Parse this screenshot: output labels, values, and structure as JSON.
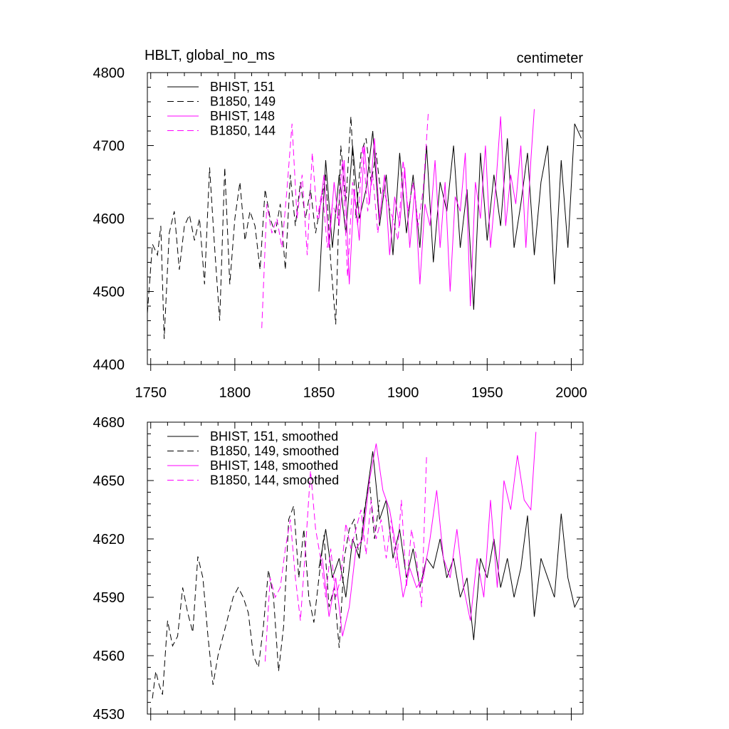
{
  "chart_data": [
    {
      "type": "line",
      "title_left": "HBLT, global_no_ms",
      "title_right": "centimeter",
      "xlim": [
        1748,
        2007
      ],
      "ylim": [
        4400,
        4800
      ],
      "x_ticks": [
        1750,
        1800,
        1850,
        1900,
        1950,
        2000
      ],
      "y_ticks": [
        4400,
        4500,
        4600,
        4700,
        4800
      ],
      "x_tick_labels": [
        "1750",
        "1800",
        "1850",
        "1900",
        "1950",
        "2000"
      ],
      "y_tick_labels": [
        "4400",
        "4500",
        "4600",
        "4700",
        "4800"
      ],
      "legend_position": "top-left",
      "series": [
        {
          "name": "BHIST, 151",
          "color": "#000000",
          "dash": "solid",
          "x": [
            1850,
            1854,
            1858,
            1862,
            1866,
            1870,
            1874,
            1878,
            1882,
            1886,
            1890,
            1894,
            1898,
            1902,
            1906,
            1910,
            1914,
            1918,
            1922,
            1926,
            1930,
            1934,
            1938,
            1942,
            1946,
            1950,
            1954,
            1958,
            1962,
            1966,
            1970,
            1974,
            1978,
            1982,
            1986,
            1990,
            1994,
            1998,
            2002,
            2006
          ],
          "values": [
            4500,
            4680,
            4560,
            4660,
            4580,
            4700,
            4600,
            4640,
            4720,
            4590,
            4660,
            4550,
            4690,
            4580,
            4660,
            4560,
            4700,
            4540,
            4650,
            4610,
            4700,
            4560,
            4640,
            4475,
            4690,
            4570,
            4660,
            4590,
            4710,
            4560,
            4620,
            4690,
            4550,
            4650,
            4700,
            4510,
            4680,
            4560,
            4730,
            4710
          ]
        },
        {
          "name": "B1850, 149",
          "color": "#000000",
          "dash": "dashed",
          "x": [
            1748,
            1751,
            1754,
            1756,
            1758,
            1761,
            1764,
            1767,
            1770,
            1773,
            1776,
            1779,
            1782,
            1785,
            1788,
            1791,
            1794,
            1797,
            1800,
            1803,
            1806,
            1809,
            1812,
            1815,
            1818,
            1821,
            1824,
            1827,
            1830,
            1833,
            1836,
            1839,
            1842,
            1845,
            1848,
            1851,
            1854,
            1857,
            1860,
            1863,
            1866,
            1869,
            1872,
            1875,
            1878,
            1881,
            1884,
            1887
          ],
          "values": [
            4470,
            4565,
            4550,
            4590,
            4435,
            4580,
            4610,
            4530,
            4590,
            4605,
            4570,
            4600,
            4510,
            4670,
            4560,
            4460,
            4670,
            4510,
            4600,
            4650,
            4570,
            4610,
            4590,
            4530,
            4640,
            4600,
            4580,
            4620,
            4530,
            4660,
            4590,
            4650,
            4600,
            4640,
            4580,
            4620,
            4660,
            4540,
            4455,
            4700,
            4620,
            4740,
            4600,
            4690,
            4710,
            4650,
            4690,
            4630
          ]
        },
        {
          "name": "BHIST, 148",
          "color": "#ff00ff",
          "dash": "solid",
          "x": [
            1850,
            1853,
            1856,
            1859,
            1862,
            1865,
            1868,
            1871,
            1874,
            1877,
            1880,
            1883,
            1886,
            1889,
            1892,
            1895,
            1898,
            1901,
            1904,
            1907,
            1910,
            1913,
            1916,
            1919,
            1922,
            1925,
            1928,
            1931,
            1934,
            1937,
            1940,
            1943,
            1946,
            1949,
            1952,
            1955,
            1958,
            1961,
            1964,
            1967,
            1970,
            1973,
            1976,
            1978
          ],
          "values": [
            4600,
            4660,
            4560,
            4650,
            4590,
            4680,
            4510,
            4640,
            4570,
            4700,
            4620,
            4710,
            4600,
            4660,
            4550,
            4630,
            4590,
            4670,
            4560,
            4640,
            4510,
            4620,
            4590,
            4680,
            4560,
            4650,
            4500,
            4630,
            4610,
            4690,
            4480,
            4650,
            4600,
            4700,
            4560,
            4640,
            4740,
            4590,
            4660,
            4620,
            4700,
            4560,
            4680,
            4750
          ]
        },
        {
          "name": "B1850, 144",
          "color": "#ff00ff",
          "dash": "dashed",
          "x": [
            1816,
            1819,
            1822,
            1825,
            1828,
            1831,
            1834,
            1837,
            1840,
            1843,
            1846,
            1849,
            1852,
            1855,
            1858,
            1861,
            1864,
            1867,
            1870,
            1873,
            1876,
            1879,
            1882,
            1885,
            1888,
            1891,
            1894,
            1897,
            1900,
            1903,
            1906,
            1909,
            1912,
            1915
          ],
          "values": [
            4450,
            4620,
            4580,
            4600,
            4560,
            4640,
            4730,
            4600,
            4660,
            4550,
            4690,
            4600,
            4640,
            4560,
            4620,
            4600,
            4680,
            4520,
            4650,
            4590,
            4700,
            4610,
            4660,
            4580,
            4640,
            4620,
            4600,
            4570,
            4680,
            4610,
            4650,
            4590,
            4640,
            4745
          ]
        }
      ]
    },
    {
      "type": "line",
      "xlim": [
        1748,
        2007
      ],
      "ylim": [
        4530,
        4680
      ],
      "x_ticks": [
        1750,
        1800,
        1850,
        1900,
        1950,
        2000
      ],
      "y_ticks": [
        4530,
        4560,
        4590,
        4620,
        4650,
        4680
      ],
      "y_tick_labels": [
        "4530",
        "4560",
        "4590",
        "4620",
        "4650",
        "4680"
      ],
      "legend_position": "top-left",
      "series": [
        {
          "name": "BHIST, 151, smoothed",
          "color": "#000000",
          "dash": "solid",
          "x": [
            1850,
            1854,
            1858,
            1862,
            1866,
            1870,
            1874,
            1878,
            1882,
            1886,
            1890,
            1894,
            1898,
            1902,
            1906,
            1910,
            1914,
            1918,
            1922,
            1926,
            1930,
            1934,
            1938,
            1942,
            1946,
            1950,
            1954,
            1958,
            1962,
            1966,
            1970,
            1974,
            1978,
            1982,
            1986,
            1990,
            1994,
            1998,
            2002,
            2005
          ],
          "values": [
            4605,
            4625,
            4600,
            4610,
            4590,
            4620,
            4610,
            4640,
            4665,
            4630,
            4640,
            4610,
            4625,
            4600,
            4615,
            4595,
            4610,
            4605,
            4620,
            4600,
            4610,
            4590,
            4600,
            4568,
            4610,
            4600,
            4620,
            4595,
            4610,
            4590,
            4605,
            4632,
            4580,
            4610,
            4600,
            4590,
            4633,
            4600,
            4585,
            4590
          ]
        },
        {
          "name": "B1850, 149, smoothed",
          "color": "#000000",
          "dash": "dashed",
          "x": [
            1751,
            1753,
            1755,
            1757,
            1760,
            1763,
            1766,
            1769,
            1772,
            1775,
            1778,
            1781,
            1784,
            1787,
            1790,
            1793,
            1796,
            1799,
            1802,
            1805,
            1808,
            1811,
            1814,
            1817,
            1820,
            1823,
            1826,
            1829,
            1832,
            1835,
            1838,
            1841,
            1844,
            1847,
            1850,
            1853,
            1856,
            1859,
            1862,
            1865,
            1868,
            1871,
            1874,
            1877,
            1880,
            1883,
            1886
          ],
          "values": [
            4538,
            4552,
            4545,
            4540,
            4578,
            4565,
            4570,
            4595,
            4582,
            4572,
            4611,
            4600,
            4570,
            4545,
            4560,
            4570,
            4580,
            4590,
            4595,
            4590,
            4582,
            4560,
            4554,
            4575,
            4604,
            4590,
            4552,
            4575,
            4630,
            4637,
            4600,
            4625,
            4590,
            4577,
            4600,
            4622,
            4585,
            4595,
            4564,
            4610,
            4625,
            4630,
            4610,
            4635,
            4650,
            4620,
            4640
          ]
        },
        {
          "name": "BHIST, 148, smoothed",
          "color": "#ff00ff",
          "dash": "solid",
          "x": [
            1852,
            1856,
            1860,
            1864,
            1868,
            1872,
            1876,
            1880,
            1884,
            1888,
            1892,
            1896,
            1900,
            1904,
            1908,
            1912,
            1916,
            1920,
            1924,
            1928,
            1932,
            1936,
            1940,
            1944,
            1948,
            1952,
            1956,
            1960,
            1964,
            1968,
            1972,
            1976,
            1979
          ],
          "values": [
            4610,
            4580,
            4600,
            4570,
            4585,
            4615,
            4620,
            4650,
            4669,
            4645,
            4635,
            4615,
            4590,
            4605,
            4595,
            4600,
            4620,
            4645,
            4610,
            4600,
            4625,
            4595,
            4578,
            4610,
            4590,
            4640,
            4595,
            4650,
            4635,
            4663,
            4640,
            4635,
            4675
          ]
        },
        {
          "name": "B1850, 144, smoothed",
          "color": "#ff00ff",
          "dash": "dashed",
          "x": [
            1818,
            1821,
            1824,
            1827,
            1830,
            1833,
            1836,
            1839,
            1842,
            1845,
            1848,
            1851,
            1854,
            1857,
            1860,
            1863,
            1866,
            1869,
            1872,
            1875,
            1878,
            1881,
            1884,
            1887,
            1890,
            1893,
            1896,
            1899,
            1902,
            1905,
            1908,
            1911,
            1914
          ],
          "values": [
            4557,
            4600,
            4590,
            4595,
            4615,
            4630,
            4600,
            4578,
            4615,
            4655,
            4625,
            4610,
            4590,
            4615,
            4590,
            4600,
            4628,
            4615,
            4625,
            4635,
            4612,
            4640,
            4620,
            4630,
            4610,
            4630,
            4605,
            4640,
            4595,
            4625,
            4610,
            4585,
            4663
          ]
        }
      ]
    }
  ]
}
